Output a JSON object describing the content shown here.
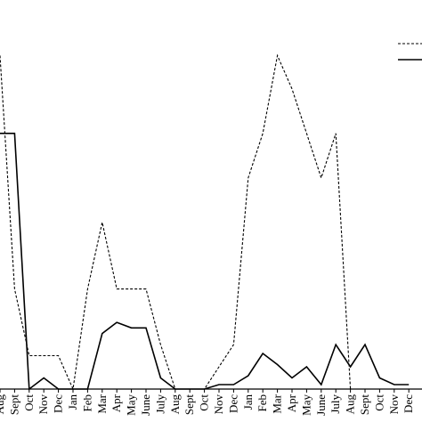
{
  "chart_data": {
    "type": "line",
    "categories": [
      "Aug",
      "Sept",
      "Oct",
      "Nov",
      "Dec",
      "Jan",
      "Feb",
      "Mar",
      "Apr",
      "May",
      "June",
      "July",
      "Aug",
      "Sept",
      "Oct",
      "Nov",
      "Dec",
      "Jan",
      "Feb",
      "Mar",
      "Apr",
      "May",
      "June",
      "July",
      "Aug",
      "Sept",
      "Oct",
      "Nov",
      "Dec"
    ],
    "series": [
      {
        "style": "dashed",
        "color": "#000000",
        "values": [
          30,
          9,
          3,
          3,
          3,
          0,
          9,
          15,
          9,
          9,
          9,
          4,
          0,
          0,
          0,
          2,
          4,
          19,
          23,
          30,
          27,
          23,
          19,
          23,
          0,
          0,
          0,
          0,
          0
        ]
      },
      {
        "style": "solid",
        "color": "#000000",
        "values": [
          23,
          23,
          0,
          1,
          0,
          0,
          0,
          5,
          6,
          5.5,
          5.5,
          1,
          0,
          0,
          0,
          0.4,
          0.4,
          1.2,
          3.2,
          2.2,
          1,
          2,
          0.4,
          4,
          2,
          4,
          1,
          0.4,
          0.4
        ]
      }
    ],
    "legend_position": "top-right",
    "grid": false,
    "ylim": [
      0,
      35
    ]
  }
}
